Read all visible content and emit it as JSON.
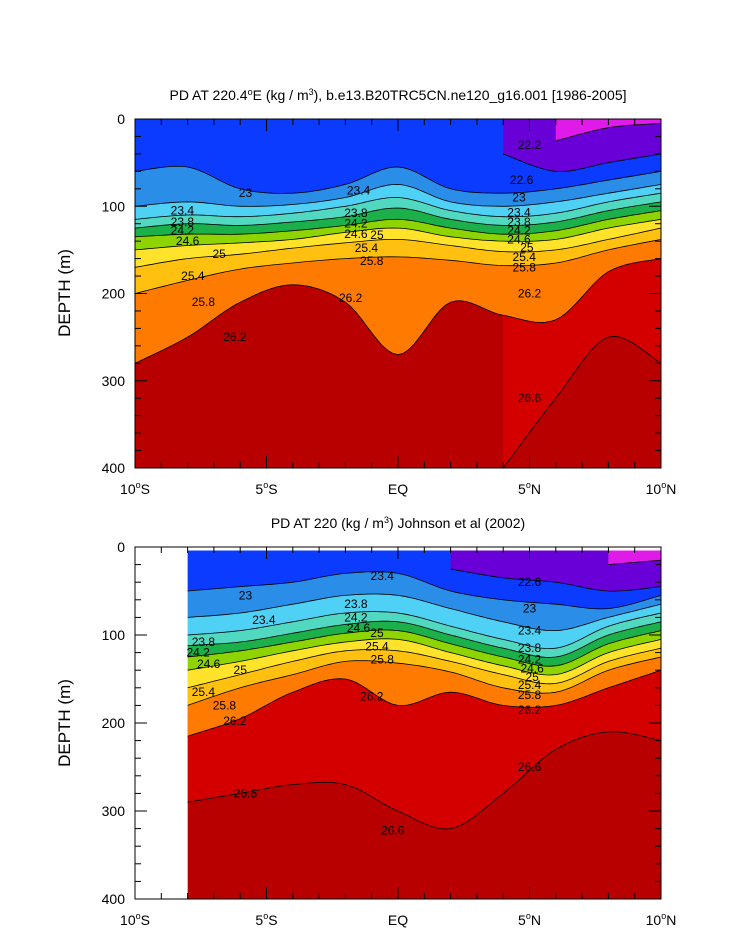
{
  "chart_data": [
    {
      "type": "heatmap",
      "title": "PD AT 220.4°E (kg / m³), b.e13.B20TRC5CN.ne120_g16.001 [1986-2005]",
      "title_parts": {
        "a": "PD AT 220.4",
        "sup": "o",
        "b": "E (kg / m",
        "sup2": "3",
        "c": "), b.e13.B20TRC5CN.ne120_g16.001 [1986-2005]"
      },
      "ylabel": "DEPTH (m)",
      "xlim": [
        -10,
        10
      ],
      "ylim": [
        400,
        0
      ],
      "y_inverted": true,
      "x_ticks": [
        {
          "value": -10,
          "num": "10",
          "unit": "S"
        },
        {
          "value": -5,
          "num": "5",
          "unit": "S"
        },
        {
          "value": 0,
          "num": "EQ",
          "unit": ""
        },
        {
          "value": 5,
          "num": "5",
          "unit": "N"
        },
        {
          "value": 10,
          "num": "10",
          "unit": "N"
        }
      ],
      "y_ticks": [
        0,
        100,
        200,
        300,
        400
      ],
      "data_x_range": [
        -10,
        10
      ],
      "contour_levels": [
        22.2,
        22.6,
        23.0,
        23.4,
        23.8,
        24.2,
        24.6,
        25.0,
        25.4,
        25.8,
        26.2,
        26.6
      ],
      "depth_of_level": {
        "x": [
          -10,
          -8,
          -6,
          -4,
          -2,
          0,
          2,
          4,
          6,
          8,
          10
        ],
        "22.2": [
          null,
          null,
          null,
          null,
          null,
          null,
          null,
          null,
          25,
          10,
          5
        ],
        "22.6": [
          null,
          null,
          null,
          null,
          null,
          null,
          null,
          40,
          60,
          50,
          40
        ],
        "23.0": [
          60,
          55,
          80,
          85,
          75,
          55,
          80,
          85,
          80,
          70,
          60
        ],
        "23.4": [
          100,
          95,
          100,
          98,
          90,
          75,
          95,
          100,
          95,
          85,
          75
        ],
        "23.8": [
          115,
          110,
          112,
          108,
          100,
          90,
          105,
          112,
          108,
          95,
          85
        ],
        "24.2": [
          125,
          120,
          122,
          118,
          112,
          102,
          115,
          122,
          118,
          105,
          95
        ],
        "24.6": [
          135,
          132,
          132,
          128,
          122,
          115,
          125,
          132,
          128,
          115,
          105
        ],
        "25.0": [
          150,
          145,
          142,
          138,
          130,
          125,
          135,
          140,
          138,
          125,
          115
        ],
        "25.4": [
          170,
          160,
          155,
          148,
          142,
          138,
          145,
          152,
          150,
          138,
          125
        ],
        "25.8": [
          200,
          185,
          172,
          165,
          160,
          158,
          162,
          168,
          165,
          150,
          138
        ],
        "26.2": [
          280,
          250,
          210,
          190,
          210,
          270,
          210,
          225,
          230,
          175,
          160
        ],
        "26.6": [
          null,
          null,
          null,
          null,
          null,
          null,
          null,
          400,
          320,
          250,
          280
        ]
      },
      "contour_labels": [
        {
          "text": "22.2",
          "x": 5.0,
          "y": 30
        },
        {
          "text": "22.6",
          "x": 4.7,
          "y": 70
        },
        {
          "text": "23",
          "x": -5.8,
          "y": 85
        },
        {
          "text": "23",
          "x": 4.6,
          "y": 90
        },
        {
          "text": "23.4",
          "x": -8.2,
          "y": 105
        },
        {
          "text": "23.4",
          "x": -1.5,
          "y": 82
        },
        {
          "text": "23.4",
          "x": 4.6,
          "y": 107
        },
        {
          "text": "23.8",
          "x": -8.2,
          "y": 118
        },
        {
          "text": "23.8",
          "x": -1.6,
          "y": 108
        },
        {
          "text": "23.8",
          "x": 4.6,
          "y": 118
        },
        {
          "text": "24.2",
          "x": -8.2,
          "y": 128
        },
        {
          "text": "24.2",
          "x": -1.6,
          "y": 120
        },
        {
          "text": "24.2",
          "x": 4.6,
          "y": 128
        },
        {
          "text": "24.6",
          "x": -8.0,
          "y": 140
        },
        {
          "text": "24.6",
          "x": -1.6,
          "y": 132
        },
        {
          "text": "24.6",
          "x": 4.6,
          "y": 138
        },
        {
          "text": "25",
          "x": -6.8,
          "y": 155
        },
        {
          "text": "25",
          "x": -0.8,
          "y": 133
        },
        {
          "text": "25",
          "x": 4.9,
          "y": 147
        },
        {
          "text": "25.4",
          "x": -7.8,
          "y": 180
        },
        {
          "text": "25.4",
          "x": -1.2,
          "y": 148
        },
        {
          "text": "25.4",
          "x": 4.8,
          "y": 158
        },
        {
          "text": "25.8",
          "x": -7.4,
          "y": 210
        },
        {
          "text": "25.8",
          "x": -1.0,
          "y": 163
        },
        {
          "text": "25.8",
          "x": 4.8,
          "y": 170
        },
        {
          "text": "26.2",
          "x": -6.2,
          "y": 250
        },
        {
          "text": "26.2",
          "x": -1.8,
          "y": 205
        },
        {
          "text": "26.2",
          "x": 5.0,
          "y": 200
        },
        {
          "text": "26.6",
          "x": 5.0,
          "y": 320
        }
      ]
    },
    {
      "type": "heatmap",
      "title": "PD AT 220 (kg / m³) Johnson et al (2002)",
      "title_parts": {
        "a": "PD AT 220 (kg / m",
        "sup": "3",
        "b": ") Johnson et al (2002)"
      },
      "ylabel": "DEPTH (m)",
      "xlim": [
        -10,
        10
      ],
      "ylim": [
        400,
        0
      ],
      "y_inverted": true,
      "x_ticks": [
        {
          "value": -10,
          "num": "10",
          "unit": "S"
        },
        {
          "value": -5,
          "num": "5",
          "unit": "S"
        },
        {
          "value": 0,
          "num": "EQ",
          "unit": ""
        },
        {
          "value": 5,
          "num": "5",
          "unit": "N"
        },
        {
          "value": 10,
          "num": "10",
          "unit": "N"
        }
      ],
      "y_ticks": [
        0,
        100,
        200,
        300,
        400
      ],
      "data_x_range": [
        -8,
        10
      ],
      "data_y_top": 4,
      "contour_levels": [
        22.2,
        22.6,
        23.0,
        23.4,
        23.8,
        24.2,
        24.6,
        25.0,
        25.4,
        25.8,
        26.2,
        26.6
      ],
      "depth_of_level": {
        "x": [
          -8,
          -6,
          -4,
          -2,
          0,
          2,
          4,
          6,
          8,
          10
        ],
        "22.2": [
          null,
          null,
          null,
          null,
          null,
          null,
          null,
          null,
          20,
          15
        ],
        "22.6": [
          null,
          null,
          null,
          null,
          null,
          25,
          35,
          40,
          50,
          45
        ],
        "23.0": [
          50,
          45,
          40,
          30,
          30,
          50,
          60,
          65,
          70,
          55
        ],
        "23.4": [
          80,
          75,
          65,
          55,
          55,
          70,
          85,
          95,
          80,
          65
        ],
        "23.8": [
          100,
          95,
          85,
          75,
          75,
          90,
          105,
          115,
          90,
          75
        ],
        "24.2": [
          112,
          108,
          98,
          88,
          85,
          100,
          115,
          125,
          100,
          85
        ],
        "24.6": [
          125,
          118,
          108,
          98,
          95,
          110,
          125,
          135,
          110,
          95
        ],
        "25.0": [
          140,
          130,
          118,
          108,
          105,
          120,
          135,
          145,
          120,
          105
        ],
        "25.4": [
          160,
          145,
          130,
          118,
          118,
          130,
          145,
          155,
          130,
          115
        ],
        "25.8": [
          180,
          160,
          145,
          130,
          132,
          142,
          160,
          165,
          140,
          125
        ],
        "26.2": [
          215,
          195,
          165,
          150,
          180,
          165,
          180,
          180,
          160,
          140
        ],
        "26.6": [
          290,
          280,
          270,
          270,
          300,
          320,
          280,
          230,
          210,
          220
        ]
      },
      "contour_labels": [
        {
          "text": "23.4",
          "x": -0.6,
          "y": 33
        },
        {
          "text": "22.6",
          "x": 5.0,
          "y": 40
        },
        {
          "text": "23",
          "x": -5.8,
          "y": 55
        },
        {
          "text": "23",
          "x": 5.0,
          "y": 70
        },
        {
          "text": "23.4",
          "x": -5.1,
          "y": 83
        },
        {
          "text": "23.8",
          "x": -1.6,
          "y": 65
        },
        {
          "text": "23.4",
          "x": 5.0,
          "y": 95
        },
        {
          "text": "24.2",
          "x": -1.6,
          "y": 80
        },
        {
          "text": "23.8",
          "x": 5.0,
          "y": 115
        },
        {
          "text": "24.6",
          "x": -1.5,
          "y": 92
        },
        {
          "text": "25",
          "x": -0.8,
          "y": 98
        },
        {
          "text": "23.8",
          "x": -7.4,
          "y": 108
        },
        {
          "text": "24.2",
          "x": -7.6,
          "y": 120
        },
        {
          "text": "24.6",
          "x": -7.2,
          "y": 133
        },
        {
          "text": "25",
          "x": -6.0,
          "y": 140
        },
        {
          "text": "25.4",
          "x": -0.8,
          "y": 113
        },
        {
          "text": "25.8",
          "x": -0.6,
          "y": 128
        },
        {
          "text": "24.2",
          "x": 5.0,
          "y": 128
        },
        {
          "text": "24.6",
          "x": 5.1,
          "y": 138
        },
        {
          "text": "25",
          "x": 5.1,
          "y": 148
        },
        {
          "text": "25.4",
          "x": 5.0,
          "y": 157
        },
        {
          "text": "25.8",
          "x": 5.0,
          "y": 168
        },
        {
          "text": "25.4",
          "x": -7.4,
          "y": 165
        },
        {
          "text": "25.8",
          "x": -6.6,
          "y": 180
        },
        {
          "text": "26.2",
          "x": 5.0,
          "y": 185
        },
        {
          "text": "26.2",
          "x": -1.0,
          "y": 170
        },
        {
          "text": "26.2",
          "x": -6.2,
          "y": 198
        },
        {
          "text": "26.6",
          "x": 5.0,
          "y": 250
        },
        {
          "text": "26.6",
          "x": -5.8,
          "y": 280
        },
        {
          "text": "26.6",
          "x": -0.2,
          "y": 322
        }
      ]
    }
  ],
  "colors": {
    "palette": [
      "#0b3bff",
      "#1e6ef0",
      "#2a8de8",
      "#3ab0f0",
      "#4fd0f5",
      "#6ee8f0",
      "#50d8c0",
      "#2ec08a",
      "#1bb04a",
      "#34c020",
      "#8ed400",
      "#d2e600",
      "#ffe22a",
      "#ffc010",
      "#ffa000",
      "#ff7a00",
      "#ff4a10",
      "#ee1c10",
      "#d40000",
      "#b80000"
    ],
    "top_low_density": [
      "#6a00d8",
      "#b000e0",
      "#e01ae8"
    ],
    "missing": "#ffffff"
  }
}
